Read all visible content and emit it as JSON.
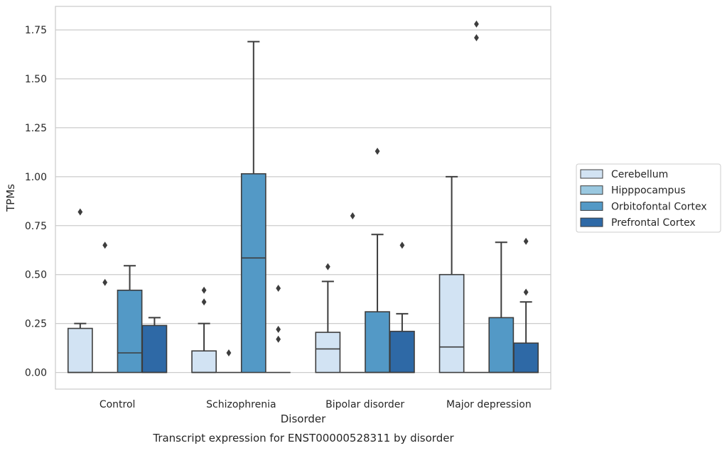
{
  "chart_data": {
    "type": "boxplot",
    "title": "",
    "caption": "Transcript expression for ENST00000528311 by disorder",
    "xlabel": "Disorder",
    "ylabel": "TPMs",
    "ylim": [
      -0.085,
      1.87
    ],
    "yticks": [
      0.0,
      0.25,
      0.5,
      0.75,
      1.0,
      1.25,
      1.5,
      1.75
    ],
    "ytick_labels": [
      "0.00",
      "0.25",
      "0.50",
      "0.75",
      "1.00",
      "1.25",
      "1.50",
      "1.75"
    ],
    "grid": "horizontal",
    "legend_position": "outside-right",
    "categories": [
      "Control",
      "Schizophrenia",
      "Bipolar disorder",
      "Major depression"
    ],
    "series": [
      {
        "name": "Cerebellum",
        "color": "#d2e3f3",
        "boxes": [
          {
            "whislo": 0.0,
            "q1": 0.0,
            "med": 0.0,
            "q3": 0.225,
            "whishi": 0.25,
            "fliers": [
              0.82
            ]
          },
          {
            "whislo": 0.0,
            "q1": 0.0,
            "med": 0.0,
            "q3": 0.11,
            "whishi": 0.25,
            "fliers": [
              0.36,
              0.42
            ]
          },
          {
            "whislo": 0.0,
            "q1": 0.0,
            "med": 0.12,
            "q3": 0.205,
            "whishi": 0.465,
            "fliers": [
              0.54
            ]
          },
          {
            "whislo": 0.0,
            "q1": 0.0,
            "med": 0.13,
            "q3": 0.5,
            "whishi": 1.0,
            "fliers": []
          }
        ]
      },
      {
        "name": "Hipppocampus",
        "color": "#9ac8e0",
        "boxes": [
          {
            "whislo": 0.0,
            "q1": 0.0,
            "med": 0.0,
            "q3": 0.0,
            "whishi": 0.0,
            "fliers": [
              0.65,
              0.46
            ]
          },
          {
            "whislo": 0.0,
            "q1": 0.0,
            "med": 0.0,
            "q3": 0.0,
            "whishi": 0.0,
            "fliers": [
              0.1
            ]
          },
          {
            "whislo": 0.0,
            "q1": 0.0,
            "med": 0.0,
            "q3": 0.0,
            "whishi": 0.0,
            "fliers": [
              0.8
            ]
          },
          {
            "whislo": 0.0,
            "q1": 0.0,
            "med": 0.0,
            "q3": 0.0,
            "whishi": 0.0,
            "fliers": [
              1.78,
              1.71
            ]
          }
        ]
      },
      {
        "name": "Orbitofontal Cortex",
        "color": "#5399c6",
        "boxes": [
          {
            "whislo": 0.0,
            "q1": 0.0,
            "med": 0.1,
            "q3": 0.42,
            "whishi": 0.545,
            "fliers": []
          },
          {
            "whislo": 0.0,
            "q1": 0.0,
            "med": 0.585,
            "q3": 1.015,
            "whishi": 1.69,
            "fliers": []
          },
          {
            "whislo": 0.0,
            "q1": 0.0,
            "med": 0.0,
            "q3": 0.31,
            "whishi": 0.705,
            "fliers": [
              1.13
            ]
          },
          {
            "whislo": 0.0,
            "q1": 0.0,
            "med": 0.0,
            "q3": 0.28,
            "whishi": 0.665,
            "fliers": []
          }
        ]
      },
      {
        "name": "Prefrontal Cortex",
        "color": "#2e69a6",
        "boxes": [
          {
            "whislo": 0.0,
            "q1": 0.0,
            "med": 0.0,
            "q3": 0.24,
            "whishi": 0.28,
            "fliers": []
          },
          {
            "whislo": 0.0,
            "q1": 0.0,
            "med": 0.0,
            "q3": 0.0,
            "whishi": 0.0,
            "fliers": [
              0.43,
              0.22,
              0.17
            ]
          },
          {
            "whislo": 0.0,
            "q1": 0.0,
            "med": 0.0,
            "q3": 0.21,
            "whishi": 0.3,
            "fliers": [
              0.65
            ]
          },
          {
            "whislo": 0.0,
            "q1": 0.0,
            "med": 0.0,
            "q3": 0.15,
            "whishi": 0.36,
            "fliers": [
              0.67,
              0.41
            ]
          }
        ]
      }
    ],
    "colors": {
      "grid": "#cccccc",
      "frame": "#cccccc",
      "line": "#3d3d3d",
      "text": "#262626"
    }
  }
}
